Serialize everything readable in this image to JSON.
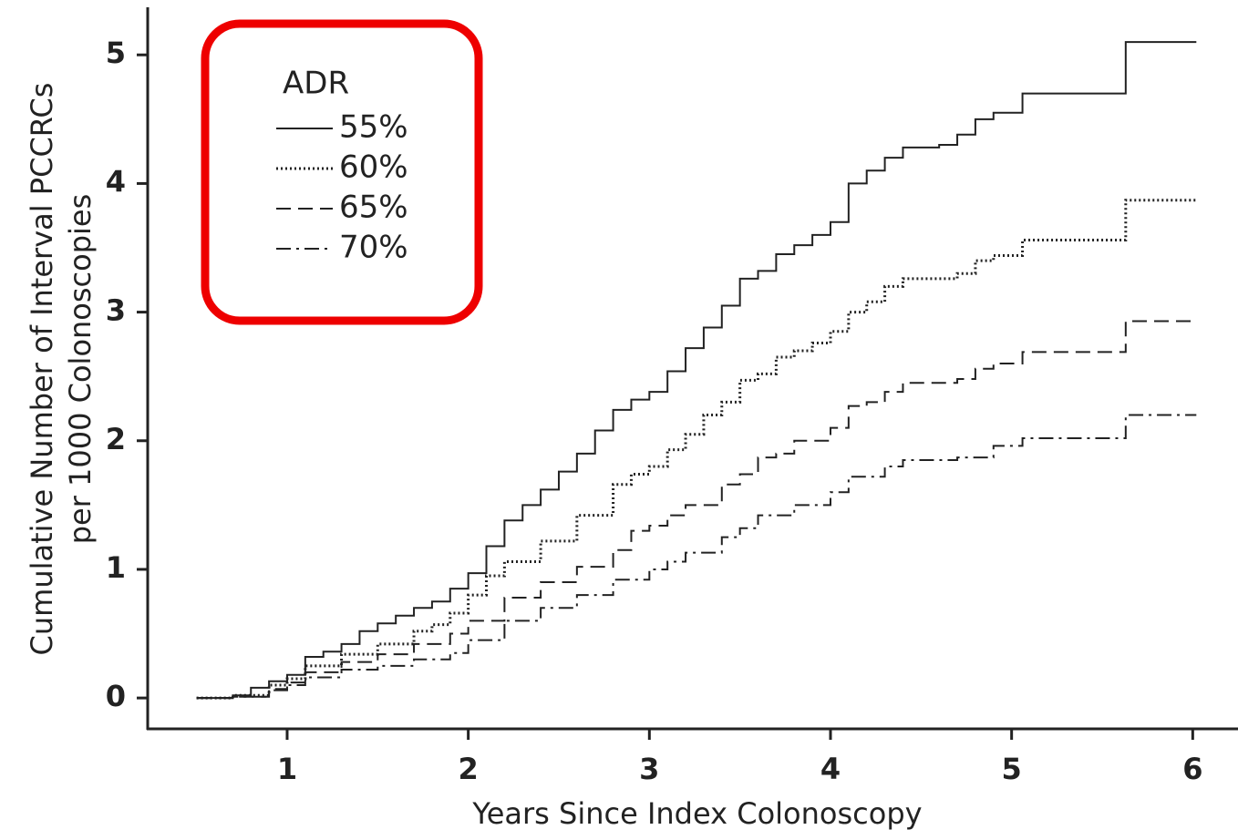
{
  "chart_data": {
    "type": "step",
    "xlabel": "Years Since Index Colonoscopy",
    "ylabel": [
      "Cumulative Number of Interval PCCRCs",
      "per 1000 Colonoscopies"
    ],
    "legend_title": "ADR",
    "legend": "upper left",
    "xlim": [
      0.23,
      6.25
    ],
    "xticks": [
      1,
      2,
      3,
      4,
      5,
      6
    ],
    "ylim": [
      -0.24,
      5.37
    ],
    "yticks": [
      0,
      1,
      2,
      3,
      4,
      5
    ],
    "series": [
      {
        "name": "55%",
        "color": "#222222",
        "style": "solid",
        "x": [
          0.5,
          0.7,
          0.8,
          0.9,
          1.0,
          1.1,
          1.2,
          1.3,
          1.4,
          1.5,
          1.6,
          1.7,
          1.8,
          1.9,
          2.0,
          2.1,
          2.2,
          2.3,
          2.4,
          2.5,
          2.6,
          2.7,
          2.8,
          2.9,
          3.0,
          3.1,
          3.2,
          3.3,
          3.4,
          3.5,
          3.6,
          3.7,
          3.8,
          3.9,
          4.0,
          4.1,
          4.2,
          4.3,
          4.4,
          4.6,
          4.7,
          4.8,
          4.9,
          5.06,
          5.63,
          6.02
        ],
        "values": [
          0,
          0.02,
          0.08,
          0.13,
          0.18,
          0.32,
          0.36,
          0.42,
          0.52,
          0.58,
          0.64,
          0.7,
          0.75,
          0.85,
          0.97,
          1.18,
          1.38,
          1.5,
          1.62,
          1.76,
          1.9,
          2.08,
          2.24,
          2.32,
          2.38,
          2.54,
          2.72,
          2.88,
          3.05,
          3.26,
          3.32,
          3.45,
          3.52,
          3.6,
          3.7,
          4.0,
          4.1,
          4.2,
          4.28,
          4.3,
          4.38,
          4.5,
          4.55,
          4.7,
          5.1,
          5.1
        ]
      },
      {
        "name": "60%",
        "color": "#222222",
        "style": "dotted",
        "x": [
          0.5,
          0.7,
          0.9,
          1.0,
          1.1,
          1.3,
          1.5,
          1.7,
          1.8,
          1.9,
          2.0,
          2.1,
          2.2,
          2.4,
          2.6,
          2.8,
          2.9,
          3.0,
          3.1,
          3.2,
          3.3,
          3.4,
          3.5,
          3.6,
          3.7,
          3.8,
          3.9,
          4.0,
          4.1,
          4.2,
          4.3,
          4.4,
          4.7,
          4.8,
          4.9,
          5.06,
          5.63,
          6.02
        ],
        "values": [
          0,
          0.02,
          0.1,
          0.15,
          0.25,
          0.34,
          0.42,
          0.52,
          0.57,
          0.66,
          0.8,
          0.95,
          1.06,
          1.22,
          1.42,
          1.66,
          1.74,
          1.8,
          1.93,
          2.05,
          2.2,
          2.3,
          2.47,
          2.52,
          2.65,
          2.7,
          2.76,
          2.85,
          3.0,
          3.08,
          3.2,
          3.26,
          3.3,
          3.4,
          3.44,
          3.56,
          3.87,
          3.87
        ]
      },
      {
        "name": "65%",
        "color": "#222222",
        "style": "dashed",
        "x": [
          0.5,
          0.7,
          0.9,
          1.0,
          1.1,
          1.3,
          1.5,
          1.7,
          1.9,
          2.0,
          2.2,
          2.4,
          2.6,
          2.8,
          2.9,
          3.0,
          3.1,
          3.2,
          3.4,
          3.5,
          3.6,
          3.7,
          3.8,
          4.0,
          4.1,
          4.2,
          4.3,
          4.4,
          4.7,
          4.8,
          4.9,
          5.06,
          5.63,
          6.02
        ],
        "values": [
          0,
          0.01,
          0.07,
          0.12,
          0.2,
          0.28,
          0.34,
          0.42,
          0.5,
          0.6,
          0.78,
          0.9,
          1.02,
          1.15,
          1.3,
          1.34,
          1.42,
          1.5,
          1.66,
          1.74,
          1.87,
          1.9,
          2.0,
          2.1,
          2.27,
          2.3,
          2.38,
          2.45,
          2.48,
          2.56,
          2.6,
          2.69,
          2.93,
          2.93
        ]
      },
      {
        "name": "70%",
        "color": "#222222",
        "style": "dashdot",
        "x": [
          0.5,
          0.7,
          0.9,
          1.0,
          1.1,
          1.3,
          1.5,
          1.7,
          1.9,
          2.0,
          2.2,
          2.4,
          2.6,
          2.8,
          3.0,
          3.1,
          3.2,
          3.4,
          3.5,
          3.6,
          3.8,
          4.0,
          4.1,
          4.3,
          4.4,
          4.7,
          4.9,
          5.06,
          5.63,
          6.02
        ],
        "values": [
          0,
          0.01,
          0.06,
          0.1,
          0.16,
          0.22,
          0.25,
          0.3,
          0.35,
          0.45,
          0.6,
          0.7,
          0.8,
          0.92,
          1.0,
          1.06,
          1.13,
          1.25,
          1.32,
          1.42,
          1.5,
          1.6,
          1.72,
          1.8,
          1.85,
          1.87,
          1.96,
          2.02,
          2.2,
          2.2
        ]
      }
    ]
  }
}
